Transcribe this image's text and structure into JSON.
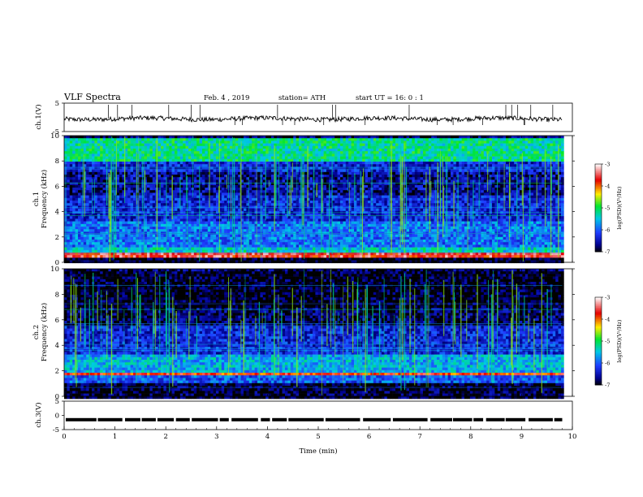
{
  "header": {
    "title": "VLF  Spectra",
    "date": "Feb. 4  , 2019",
    "station": "station= ATH",
    "start": "start  UT  =    16: 0   : 1"
  },
  "colors": {
    "background": "#ffffff",
    "trace": "#000000",
    "spec_low": "#000000",
    "spec_dark_blue": "#00008c",
    "spec_blue": "#1e3cff",
    "spec_cyan": "#00c8e6",
    "spec_green": "#00e632",
    "spec_yellow": "#ffee00",
    "spec_red": "#e60000",
    "spec_high": "#ffffff"
  },
  "chart_data": [
    {
      "id": "ch1_waveform",
      "type": "line",
      "ylabel": "ch.1(V)",
      "ylim": [
        -5,
        5
      ],
      "y_ticks": [
        "5",
        "-5"
      ],
      "xlim": [
        0,
        10
      ],
      "x_unit": "min",
      "baseline_v": -0.5,
      "extent_min": [
        0,
        9.8
      ]
    },
    {
      "id": "ch1_spectrogram",
      "type": "heatmap",
      "ylabel": "ch.1",
      "ylabel2": "Frequency  (kHz)",
      "ylim": [
        0,
        10
      ],
      "y_ticks": [
        "0",
        "2",
        "4",
        "6",
        "8",
        "10"
      ],
      "xlim": [
        0,
        10
      ],
      "data_extent_min": [
        0,
        9.8
      ],
      "colorbar": {
        "label": "log(PSD)(V²/Hz)",
        "range": [
          -7,
          -3
        ],
        "ticks": [
          "-3",
          "-4",
          "-5",
          "-6",
          "-7"
        ]
      },
      "bands_khz": [
        {
          "f0": 0.0,
          "f1": 0.4,
          "level": -7
        },
        {
          "f0": 0.5,
          "f1": 0.9,
          "level": -3.6
        },
        {
          "f0": 0.9,
          "f1": 1.2,
          "level": -5.4
        },
        {
          "f0": 1.2,
          "f1": 3.4,
          "level": -5.9
        },
        {
          "f0": 3.4,
          "f1": 5.4,
          "level": -6.3
        },
        {
          "f0": 5.4,
          "f1": 7.2,
          "level": -6.6
        },
        {
          "f0": 7.2,
          "f1": 8.0,
          "level": -6.3
        },
        {
          "f0": 8.0,
          "f1": 10.0,
          "level": -5.2
        }
      ]
    },
    {
      "id": "ch2_spectrogram",
      "type": "heatmap",
      "ylabel": "ch.2",
      "ylabel2": "Frequency  (kHz)",
      "ylim": [
        0,
        10
      ],
      "y_ticks": [
        "0",
        "2",
        "4",
        "6",
        "8",
        "10"
      ],
      "xlim": [
        0,
        10
      ],
      "data_extent_min": [
        0,
        9.8
      ],
      "colorbar": {
        "label": "log(PSD)(V²/Hz)",
        "range": [
          -7,
          -3
        ],
        "ticks": [
          "-3",
          "-4",
          "-5",
          "-6",
          "-7"
        ]
      },
      "bands_khz": [
        {
          "f0": 0.0,
          "f1": 1.2,
          "level": -6.9
        },
        {
          "f0": 1.2,
          "f1": 1.8,
          "level": -6.0
        },
        {
          "f0": 1.8,
          "f1": 2.0,
          "level": -3.8
        },
        {
          "f0": 2.0,
          "f1": 3.4,
          "level": -5.6
        },
        {
          "f0": 3.4,
          "f1": 5.6,
          "level": -6.3
        },
        {
          "f0": 5.6,
          "f1": 7.0,
          "level": -6.8
        },
        {
          "f0": 7.0,
          "f1": 10.0,
          "level": -6.95
        }
      ]
    },
    {
      "id": "ch3_signal",
      "type": "line",
      "ylabel": "ch.3(V)",
      "ylim": [
        -5,
        5
      ],
      "y_ticks": [
        "5",
        "0",
        "-5"
      ],
      "xlim": [
        0,
        10
      ],
      "xlabel": "Time  (min)",
      "x_ticks": [
        "0",
        "1",
        "2",
        "3",
        "4",
        "5",
        "6",
        "7",
        "8",
        "9",
        "10"
      ],
      "level_v": -1.5,
      "extent_min": [
        0,
        9.8
      ]
    }
  ]
}
